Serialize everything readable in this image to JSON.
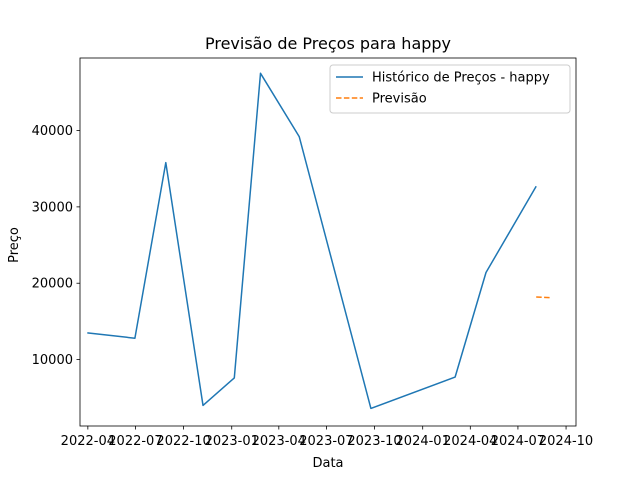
{
  "chart_data": {
    "type": "line",
    "title": "Previsão de Preços para happy",
    "xlabel": "Data",
    "ylabel": "Preço",
    "xlim": [
      "2022-03-17",
      "2024-10-20"
    ],
    "ylim": [
      1300,
      49500
    ],
    "x_ticks": [
      "2022-04-01",
      "2022-07-01",
      "2022-10-01",
      "2023-01-01",
      "2023-04-01",
      "2023-07-01",
      "2023-10-01",
      "2024-01-01",
      "2024-04-01",
      "2024-07-01",
      "2024-10-01"
    ],
    "x_tick_labels": [
      "2022-04",
      "2022-07",
      "2022-10",
      "2023-01",
      "2023-04",
      "2023-07",
      "2023-10",
      "2024-01",
      "2024-04",
      "2024-07",
      "2024-10"
    ],
    "y_ticks": [
      10000,
      20000,
      30000,
      40000
    ],
    "y_tick_labels": [
      "10000",
      "20000",
      "30000",
      "40000"
    ],
    "legend_position": "top-right",
    "grid": false,
    "series": [
      {
        "name": "Histórico de Preços - happy",
        "color": "#1f77b4",
        "style": "solid",
        "x": [
          "2022-03-31",
          "2022-06-30",
          "2022-08-28",
          "2022-11-07",
          "2023-01-06",
          "2023-02-25",
          "2023-05-10",
          "2023-09-24",
          "2024-03-03",
          "2024-05-01",
          "2024-08-05"
        ],
        "y": [
          13500,
          12800,
          35800,
          4000,
          7600,
          47500,
          39200,
          3600,
          7700,
          21400,
          32700
        ]
      },
      {
        "name": "Previsão",
        "color": "#ff7f0e",
        "style": "dashed",
        "x": [
          "2024-08-05",
          "2024-09-02"
        ],
        "y": [
          18200,
          18100
        ]
      }
    ]
  }
}
